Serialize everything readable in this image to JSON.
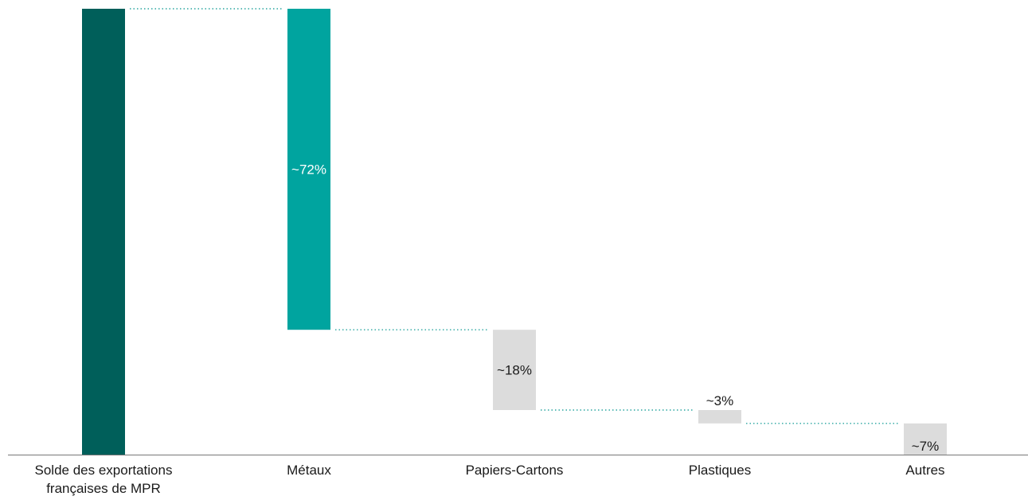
{
  "chart_data": {
    "type": "bar",
    "subtype": "waterfall",
    "categories": [
      [
        "Solde des exportations",
        "françaises de MPR"
      ],
      [
        "Métaux"
      ],
      [
        "Papiers-Cartons"
      ],
      [
        "Plastiques"
      ],
      [
        "Autres"
      ]
    ],
    "total": 100,
    "steps": [
      {
        "category_index": 1,
        "value": 72,
        "label": "~72%"
      },
      {
        "category_index": 2,
        "value": 18,
        "label": "~18%"
      },
      {
        "category_index": 3,
        "value": 3,
        "label": "~3%"
      },
      {
        "category_index": 4,
        "value": 7,
        "label": "~7%"
      }
    ],
    "ylim": [
      0,
      100
    ],
    "grid": false,
    "colors": {
      "total": "#005f5a",
      "major": "#00a49f",
      "minor": "#dcdcdc",
      "connector": "#2aa6a0",
      "axis": "#777777",
      "label_on_dark": "#ffffff",
      "label_on_light": "#1a1a1a"
    }
  }
}
